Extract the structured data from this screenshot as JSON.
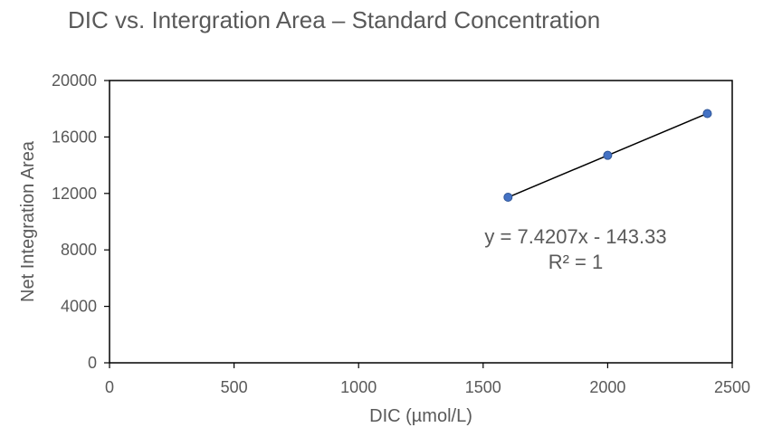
{
  "chart_data": {
    "type": "scatter",
    "title": "DIC vs. Intergration Area – Standard Concentration",
    "xlabel": "DIC (µmol/L)",
    "ylabel": "Net Integration Area",
    "xlim": [
      0,
      2500
    ],
    "ylim": [
      0,
      20000
    ],
    "xticks": [
      0,
      500,
      1000,
      1500,
      2000,
      2500
    ],
    "yticks": [
      0,
      4000,
      8000,
      12000,
      16000,
      20000
    ],
    "xtick_labels": [
      "0",
      "500",
      "1000",
      "1500",
      "2000",
      "2500"
    ],
    "ytick_labels": [
      "0",
      "4000",
      "8000",
      "12000",
      "16000",
      "20000"
    ],
    "points": [
      {
        "x": 1600,
        "y": 11730
      },
      {
        "x": 2000,
        "y": 14700
      },
      {
        "x": 2400,
        "y": 17660
      }
    ],
    "trendline": {
      "slope": 7.4207,
      "intercept": -143.33,
      "x_range": [
        1600,
        2400
      ]
    },
    "annotations": {
      "equation": "y = 7.4207x - 143.33",
      "r_squared": "R² = 1"
    },
    "grid": false,
    "legend": "none",
    "colors": {
      "marker": "#4472C4",
      "marker_edge": "#2F5597",
      "trendline": "#000000",
      "axis": "#000000",
      "text": "#595959"
    }
  }
}
